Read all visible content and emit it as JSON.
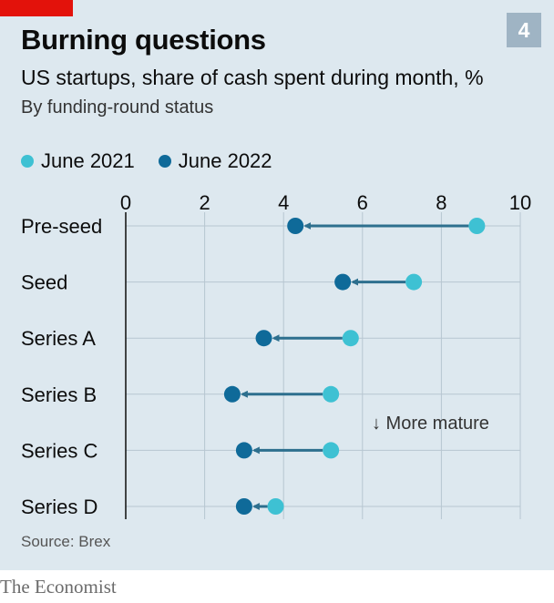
{
  "header": {
    "title": "Burning questions",
    "number": "4",
    "subtitle": "US startups, share of cash spent during month, %",
    "subsubtitle": "By funding-round status"
  },
  "legend": [
    {
      "label": "June 2021",
      "color": "#3ec1d3"
    },
    {
      "label": "June 2022",
      "color": "#0f6a99"
    }
  ],
  "annotation": "↓ More mature",
  "source": "Source: Brex",
  "brand": "The Economist",
  "colors": {
    "background": "#dde8ef",
    "accent_red": "#e3120b",
    "arrow": "#2d6f8e",
    "grid": "#ffffff"
  },
  "chart_data": {
    "type": "dumbbell",
    "categories": [
      "Pre-seed",
      "Seed",
      "Series A",
      "Series B",
      "Series C",
      "Series D"
    ],
    "series": [
      {
        "name": "June 2021",
        "values": [
          8.9,
          7.3,
          5.7,
          5.2,
          5.2,
          3.8
        ]
      },
      {
        "name": "June 2022",
        "values": [
          4.3,
          5.5,
          3.5,
          2.7,
          3.0,
          3.0
        ]
      }
    ],
    "xlim": [
      0,
      10
    ],
    "xticks": [
      "0",
      "2",
      "4",
      "6",
      "8",
      "10"
    ],
    "grid": true,
    "legend_position": "top"
  }
}
